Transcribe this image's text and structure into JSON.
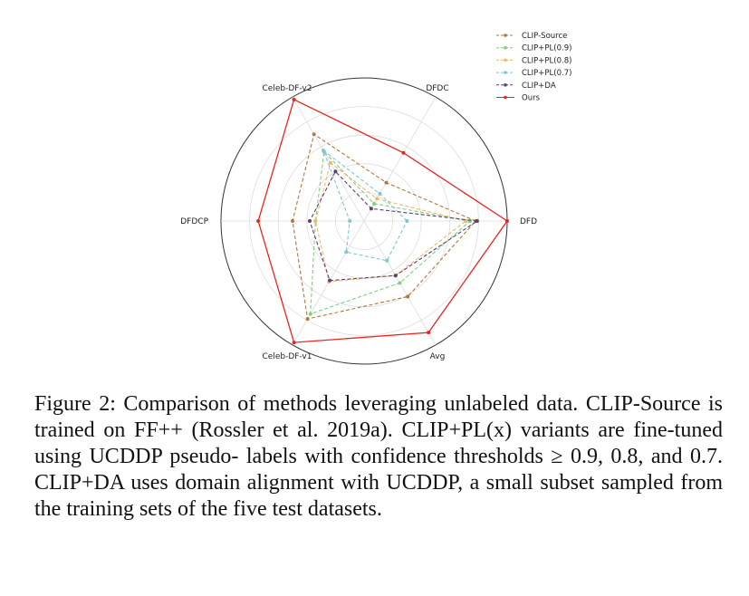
{
  "chart_data": {
    "type": "radar",
    "axes": [
      "DFD",
      "DFDC",
      "Celeb-DF-v2",
      "DFDCP",
      "Celeb-DF-v1",
      "Avg"
    ],
    "rlim": [
      0,
      1
    ],
    "grid": true,
    "legend_position": "top-right",
    "series": [
      {
        "name": "CLIP-Source",
        "color": "#b5763a",
        "style": "dashed",
        "marker": true,
        "values": [
          0.78,
          0.31,
          0.7,
          0.5,
          0.79,
          0.61
        ]
      },
      {
        "name": "CLIP+PL(0.9)",
        "color": "#7fd07f",
        "style": "dashed",
        "marker": true,
        "values": [
          0.74,
          0.14,
          0.56,
          0.34,
          0.75,
          0.5
        ]
      },
      {
        "name": "CLIP+PL(0.8)",
        "color": "#f2b66b",
        "style": "dashed",
        "marker": true,
        "values": [
          0.71,
          0.18,
          0.47,
          0.34,
          0.49,
          0.44
        ]
      },
      {
        "name": "CLIP+PL(0.7)",
        "color": "#7cc6d6",
        "style": "dashed",
        "marker": true,
        "values": [
          0.3,
          0.22,
          0.57,
          0.1,
          0.25,
          0.32
        ]
      },
      {
        "name": "CLIP+DA",
        "color": "#5a3f73",
        "style": "dashed",
        "marker": true,
        "values": [
          0.79,
          0.1,
          0.4,
          0.38,
          0.48,
          0.44
        ]
      },
      {
        "name": "Ours",
        "color": "#e8251e",
        "style": "solid",
        "marker": true,
        "values": [
          1.0,
          0.55,
          0.98,
          0.74,
          0.98,
          0.9
        ]
      }
    ]
  },
  "caption": {
    "line1": "Figure 2: Comparison of methods leveraging unlabeled data.",
    "line2": "CLIP-Source is trained on FF++ (Rossler et al. 2019a).",
    "line3": "CLIP+PL(x) variants are fine-tuned using UCDDP pseudo-",
    "line4": "labels with confidence thresholds ≥ 0.9, 0.8, and 0.7.",
    "line5": "CLIP+DA uses domain alignment with UCDDP, a small",
    "line6": "subset sampled from the training sets of the five test datasets."
  }
}
